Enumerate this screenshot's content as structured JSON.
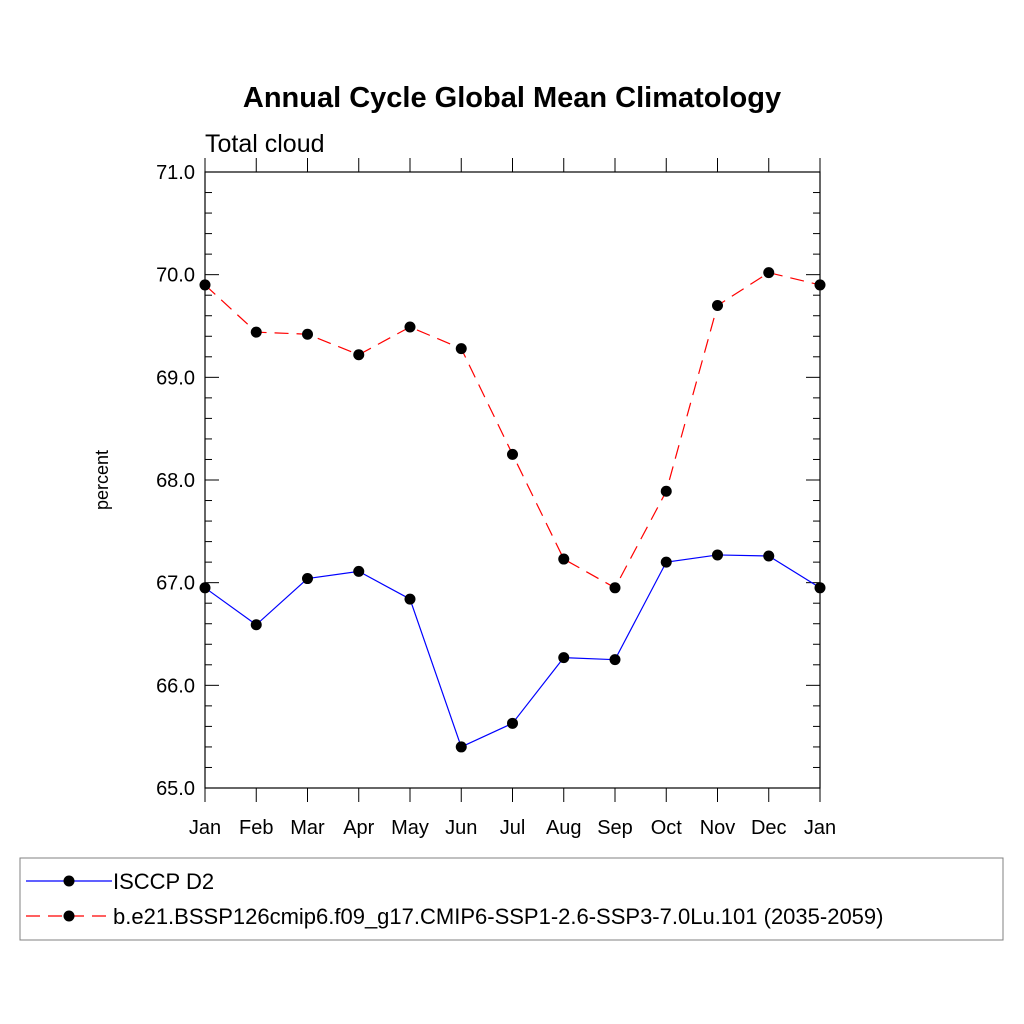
{
  "chart_data": {
    "type": "line",
    "title": "Annual Cycle Global Mean Climatology",
    "subtitle": "Total cloud",
    "ylabel": "percent",
    "xlabel": "",
    "categories": [
      "Jan",
      "Feb",
      "Mar",
      "Apr",
      "May",
      "Jun",
      "Jul",
      "Aug",
      "Sep",
      "Oct",
      "Nov",
      "Dec",
      "Jan"
    ],
    "ylim": [
      65.0,
      71.0
    ],
    "yticks": [
      "65.0",
      "66.0",
      "67.0",
      "68.0",
      "69.0",
      "70.0",
      "71.0"
    ],
    "grid": false,
    "legend_position": "bottom",
    "series": [
      {
        "name": "ISCCP D2",
        "color": "#0000ff",
        "dash": "solid",
        "marker": "filled-circle",
        "values": [
          66.95,
          66.59,
          67.04,
          67.11,
          66.84,
          65.4,
          65.63,
          66.27,
          66.25,
          67.2,
          67.27,
          67.26,
          66.95
        ]
      },
      {
        "name": "b.e21.BSSP126cmip6.f09_g17.CMIP6-SSP1-2.6-SSP3-7.0Lu.101 (2035-2059)",
        "color": "#ff0000",
        "dash": "dashed",
        "marker": "filled-circle",
        "values": [
          69.9,
          69.44,
          69.42,
          69.22,
          69.49,
          69.28,
          68.25,
          67.23,
          66.95,
          67.89,
          69.7,
          70.02,
          69.9
        ]
      }
    ]
  }
}
